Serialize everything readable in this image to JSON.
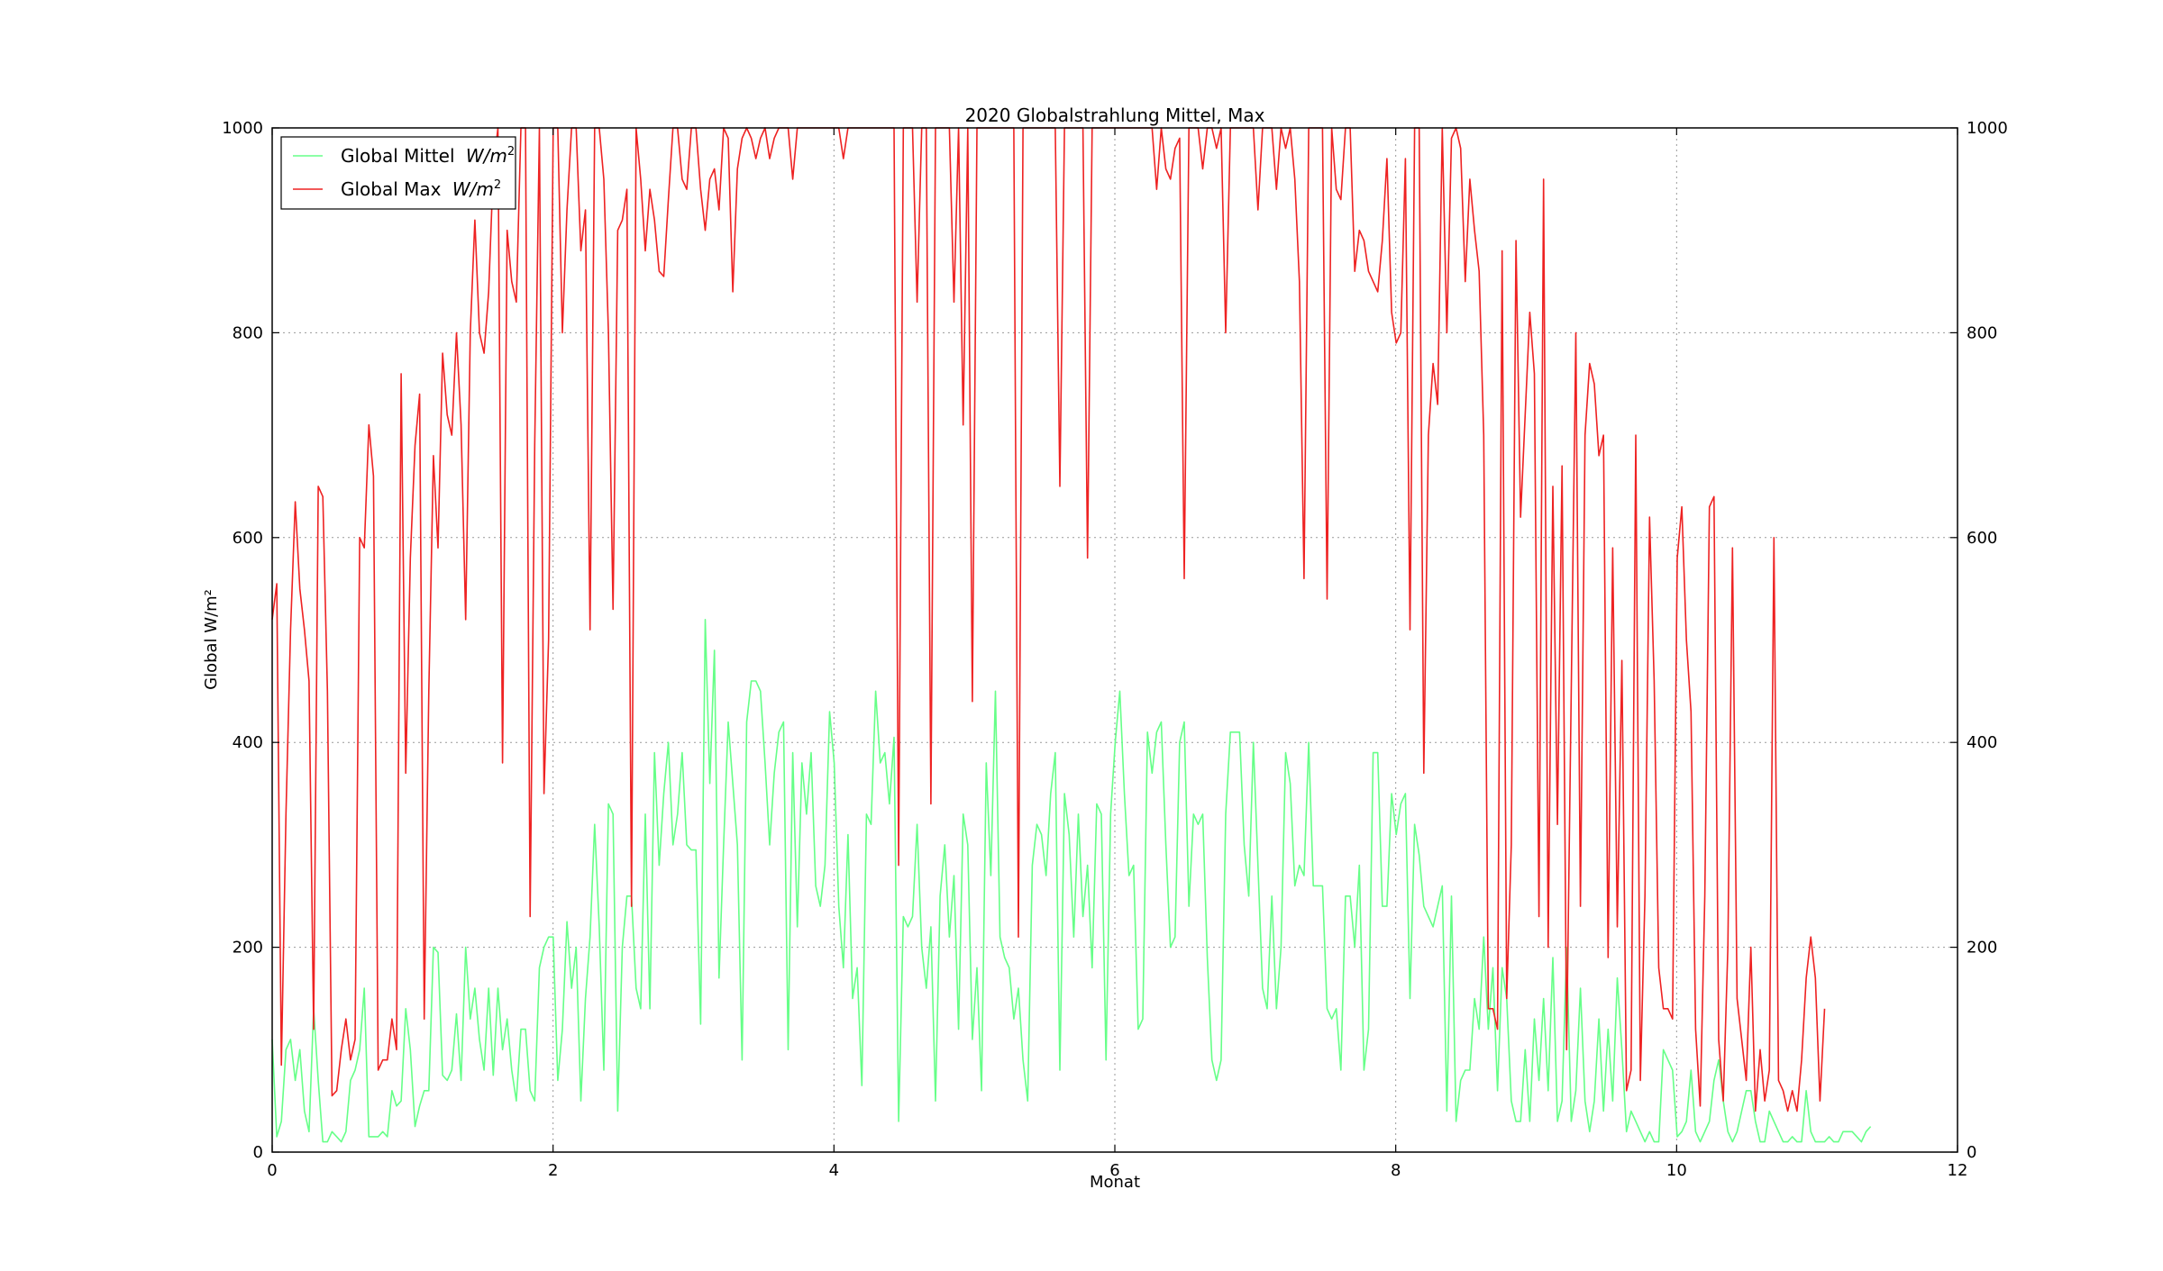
{
  "chart_data": {
    "type": "line",
    "title": "2020 Globalstrahlung Mittel, Max",
    "xlabel": "Monat",
    "ylabel": "Global W/m²",
    "xlim": [
      0,
      12
    ],
    "ylim": [
      0,
      1000
    ],
    "x_ticks": [
      "0",
      "2",
      "4",
      "6",
      "8",
      "10",
      "12"
    ],
    "y_ticks": [
      "0",
      "200",
      "400",
      "600",
      "800",
      "1000"
    ],
    "grid": true,
    "legend_position": "top-left",
    "colors": {
      "mittel": "#66ff88",
      "max": "#ee2222",
      "grid": "#999999"
    },
    "series": [
      {
        "name": "Global Mittel W/m²",
        "color": "#66ff88",
        "x_step_months": 0.0328,
        "values": [
          110,
          15,
          30,
          100,
          110,
          70,
          100,
          40,
          20,
          140,
          70,
          10,
          10,
          20,
          15,
          10,
          20,
          70,
          80,
          100,
          160,
          15,
          15,
          15,
          20,
          15,
          60,
          45,
          50,
          140,
          100,
          25,
          45,
          60,
          60,
          200,
          195,
          75,
          70,
          80,
          135,
          70,
          200,
          130,
          160,
          110,
          80,
          160,
          75,
          160,
          100,
          130,
          80,
          50,
          120,
          120,
          60,
          50,
          180,
          200,
          210,
          210,
          70,
          120,
          225,
          160,
          200,
          50,
          150,
          210,
          320,
          220,
          80,
          340,
          330,
          40,
          200,
          250,
          250,
          160,
          140,
          330,
          140,
          390,
          280,
          350,
          400,
          300,
          330,
          390,
          300,
          295,
          295,
          125,
          520,
          360,
          490,
          170,
          300,
          420,
          360,
          300,
          90,
          420,
          460,
          460,
          450,
          380,
          300,
          370,
          410,
          420,
          100,
          390,
          220,
          380,
          330,
          390,
          260,
          240,
          280,
          430,
          380,
          240,
          180,
          310,
          150,
          180,
          65,
          330,
          320,
          450,
          380,
          390,
          340,
          405,
          30,
          230,
          220,
          230,
          320,
          200,
          160,
          220,
          50,
          250,
          300,
          210,
          270,
          120,
          330,
          300,
          110,
          180,
          60,
          380,
          270,
          450,
          210,
          190,
          180,
          130,
          160,
          90,
          50,
          280,
          320,
          310,
          270,
          350,
          390,
          80,
          350,
          310,
          210,
          330,
          230,
          280,
          180,
          340,
          330,
          90,
          330,
          400,
          450,
          350,
          270,
          280,
          120,
          130,
          410,
          370,
          410,
          420,
          300,
          200,
          210,
          400,
          420,
          240,
          330,
          320,
          330,
          190,
          90,
          70,
          90,
          330,
          410,
          410,
          410,
          300,
          250,
          400,
          280,
          160,
          140,
          250,
          140,
          200,
          390,
          360,
          260,
          280,
          270,
          400,
          260,
          260,
          260,
          140,
          130,
          140,
          80,
          250,
          250,
          200,
          280,
          80,
          120,
          390,
          390,
          240,
          240,
          350,
          310,
          340,
          350,
          150,
          320,
          290,
          240,
          230,
          220,
          240,
          260,
          40,
          250,
          30,
          70,
          80,
          80,
          150,
          120,
          210,
          120,
          180,
          60,
          180,
          150,
          50,
          30,
          30,
          100,
          30,
          130,
          70,
          150,
          60,
          190,
          30,
          50,
          200,
          30,
          60,
          160,
          50,
          20,
          50,
          130,
          40,
          120,
          50,
          170,
          100,
          20,
          40,
          30,
          20,
          10,
          20,
          10,
          10,
          100,
          90,
          80,
          15,
          20,
          30,
          80,
          20,
          10,
          20,
          30,
          70,
          90,
          50,
          20,
          10,
          20,
          40,
          60,
          60,
          30,
          10,
          10,
          40,
          30,
          20,
          10,
          10,
          15,
          10,
          10,
          60,
          20,
          10,
          10,
          10,
          15,
          10,
          10,
          20,
          20,
          20,
          15,
          10,
          20,
          25
        ],
        "legend_label": "Global Mittel"
      },
      {
        "name": "Global Max W/m²",
        "color": "#ee2222",
        "x_step_months": 0.0328,
        "values": [
          520,
          555,
          85,
          330,
          510,
          635,
          550,
          510,
          460,
          120,
          650,
          640,
          450,
          55,
          60,
          100,
          130,
          90,
          110,
          600,
          590,
          710,
          660,
          80,
          90,
          90,
          130,
          100,
          760,
          370,
          580,
          690,
          740,
          130,
          450,
          680,
          590,
          780,
          720,
          700,
          800,
          710,
          520,
          800,
          910,
          800,
          780,
          840,
          960,
          1000,
          380,
          900,
          850,
          830,
          1000,
          1000,
          230,
          690,
          1000,
          350,
          500,
          1000,
          1000,
          800,
          920,
          1000,
          1000,
          880,
          920,
          510,
          1000,
          1000,
          950,
          800,
          530,
          900,
          910,
          940,
          240,
          1000,
          950,
          880,
          940,
          910,
          860,
          855,
          930,
          1000,
          1000,
          950,
          940,
          1000,
          1000,
          940,
          900,
          950,
          960,
          920,
          1000,
          990,
          840,
          960,
          990,
          1000,
          990,
          970,
          990,
          1000,
          970,
          990,
          1000,
          1000,
          1000,
          950,
          1000,
          1000,
          1000,
          1000,
          1000,
          1000,
          1000,
          1000,
          1000,
          1000,
          970,
          1000,
          1000,
          1000,
          1000,
          1000,
          1000,
          1000,
          1000,
          1000,
          1000,
          1000,
          280,
          1000,
          1000,
          1000,
          830,
          1000,
          1000,
          340,
          1000,
          1000,
          1000,
          1000,
          830,
          1000,
          710,
          1000,
          440,
          1000,
          1000,
          1000,
          1000,
          1000,
          1000,
          1000,
          1000,
          1000,
          210,
          1000,
          1000,
          1000,
          1000,
          1000,
          1000,
          1000,
          1000,
          650,
          1000,
          1000,
          1000,
          1000,
          1000,
          580,
          1000,
          1000,
          1000,
          1000,
          1000,
          1000,
          1000,
          1000,
          1000,
          1000,
          1000,
          1000,
          1000,
          1000,
          940,
          1000,
          960,
          950,
          980,
          990,
          560,
          1000,
          1000,
          1000,
          960,
          1000,
          1000,
          980,
          1000,
          800,
          1000,
          1000,
          1000,
          1000,
          1000,
          1000,
          920,
          1000,
          1000,
          1000,
          940,
          1000,
          980,
          1000,
          950,
          850,
          560,
          1000,
          1000,
          1000,
          1000,
          540,
          1000,
          940,
          930,
          1000,
          1000,
          860,
          900,
          890,
          860,
          850,
          840,
          890,
          970,
          820,
          790,
          800,
          970,
          510,
          1000,
          1000,
          370,
          700,
          770,
          730,
          1000,
          800,
          990,
          1000,
          980,
          850,
          950,
          900,
          860,
          700,
          140,
          140,
          120,
          880,
          150,
          300,
          890,
          620,
          720,
          820,
          760,
          230,
          950,
          200,
          650,
          320,
          670,
          100,
          450,
          800,
          240,
          700,
          770,
          750,
          680,
          700,
          190,
          590,
          220,
          480,
          60,
          80,
          700,
          70,
          250,
          620,
          460,
          180,
          140,
          140,
          130,
          580,
          630,
          500,
          430,
          120,
          45,
          250,
          630,
          640,
          110,
          50,
          200,
          590,
          150,
          110,
          70,
          200,
          40,
          100,
          50,
          80,
          600,
          70,
          60,
          40,
          60,
          40,
          90,
          170,
          210,
          170,
          50,
          140
        ],
        "legend_label": "Global Max"
      }
    ]
  }
}
